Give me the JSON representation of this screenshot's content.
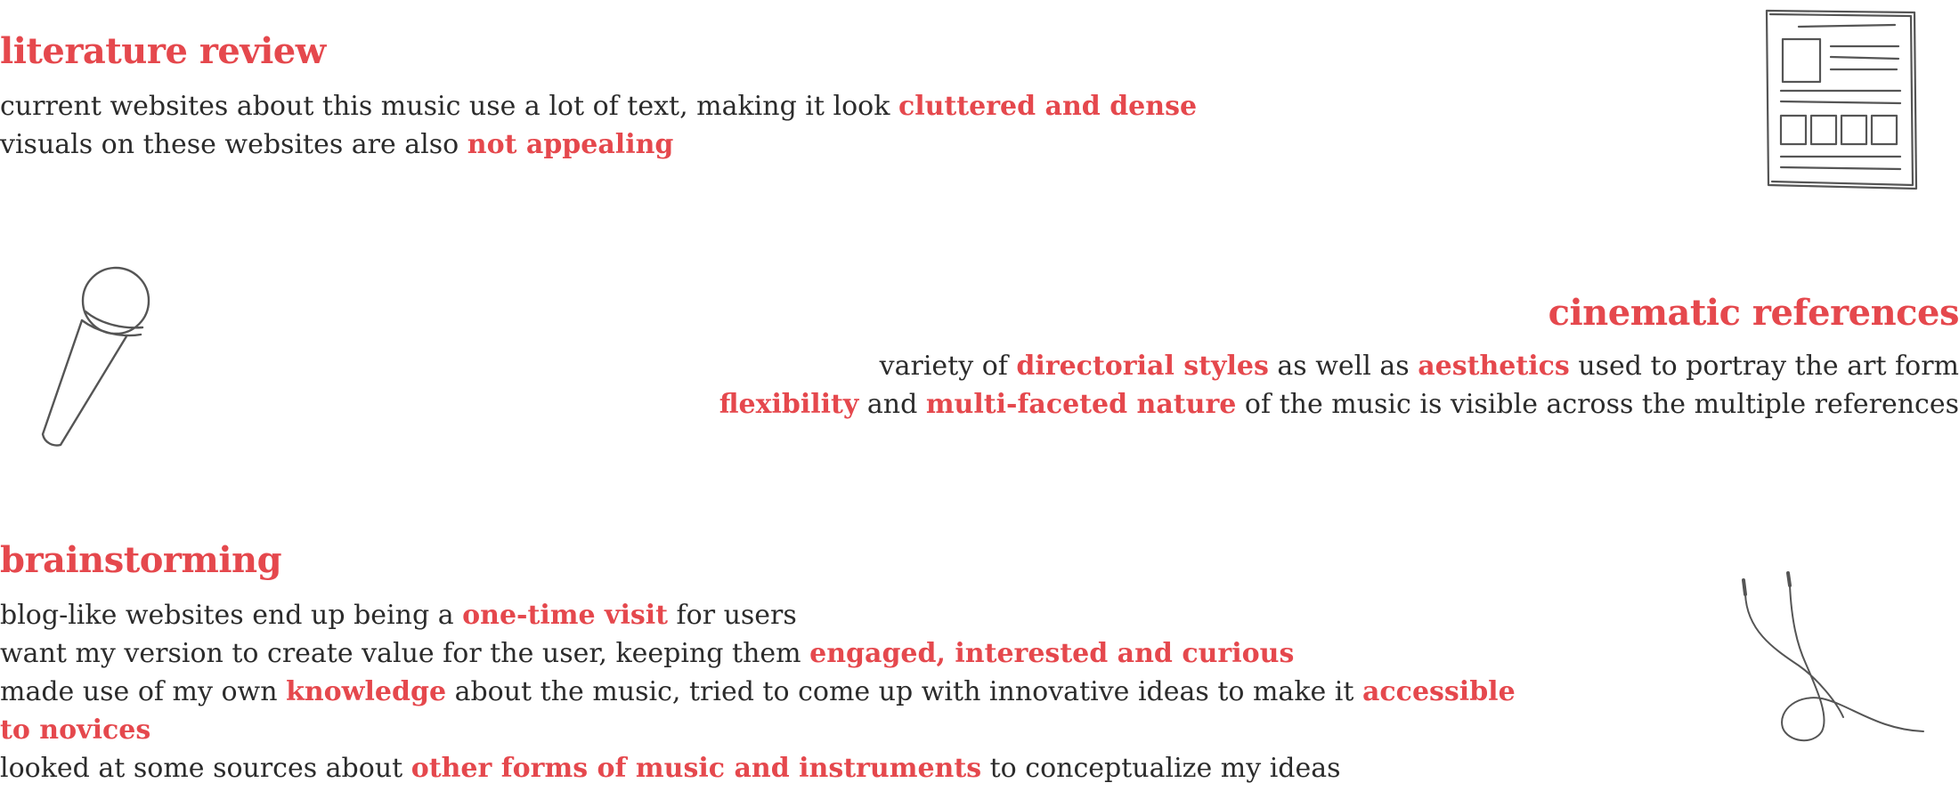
{
  "colors": {
    "accent": "#e5484d",
    "text": "#2b2b2b",
    "sketch": "#555555",
    "background": "#ffffff"
  },
  "literature_review": {
    "heading": "literature review",
    "lines": [
      {
        "segments": [
          {
            "text": "current websites about this music use a lot of text, making it look ",
            "highlight": false
          },
          {
            "text": "cluttered and dense",
            "highlight": true
          }
        ]
      },
      {
        "segments": [
          {
            "text": "visuals on these websites are also ",
            "highlight": false
          },
          {
            "text": "not appealing",
            "highlight": true
          }
        ]
      }
    ],
    "icon": "document-sketch-icon"
  },
  "cinematic_references": {
    "heading": "cinematic references",
    "lines": [
      {
        "segments": [
          {
            "text": "variety of ",
            "highlight": false
          },
          {
            "text": "directorial styles",
            "highlight": true
          },
          {
            "text": " as well as ",
            "highlight": false
          },
          {
            "text": "aesthetics",
            "highlight": true
          },
          {
            "text": " used to portray the art form",
            "highlight": false
          }
        ]
      },
      {
        "segments": [
          {
            "text": "flexibility",
            "highlight": true
          },
          {
            "text": " and ",
            "highlight": false
          },
          {
            "text": "multi-faceted nature",
            "highlight": true
          },
          {
            "text": " of the music is visible across the multiple references",
            "highlight": false
          }
        ]
      }
    ],
    "icon": "microphone-sketch-icon"
  },
  "brainstorming": {
    "heading": "brainstorming",
    "lines": [
      {
        "segments": [
          {
            "text": "blog-like websites end up being a ",
            "highlight": false
          },
          {
            "text": "one-time visit",
            "highlight": true
          },
          {
            "text": " for users",
            "highlight": false
          }
        ]
      },
      {
        "segments": [
          {
            "text": "want my version to create value for the user, keeping them ",
            "highlight": false
          },
          {
            "text": "engaged, interested and curious",
            "highlight": true
          }
        ]
      },
      {
        "segments": [
          {
            "text": "made use of my own ",
            "highlight": false
          },
          {
            "text": "knowledge",
            "highlight": true
          },
          {
            "text": " about the music, tried to come up with innovative ideas to make it ",
            "highlight": false
          },
          {
            "text": "accessible to novices",
            "highlight": true
          }
        ]
      },
      {
        "segments": [
          {
            "text": "looked at some sources about ",
            "highlight": false
          },
          {
            "text": "other forms of music and instruments",
            "highlight": true
          },
          {
            "text": " to conceptualize my ideas",
            "highlight": false
          }
        ]
      }
    ],
    "icon": "earphones-sketch-icon"
  }
}
